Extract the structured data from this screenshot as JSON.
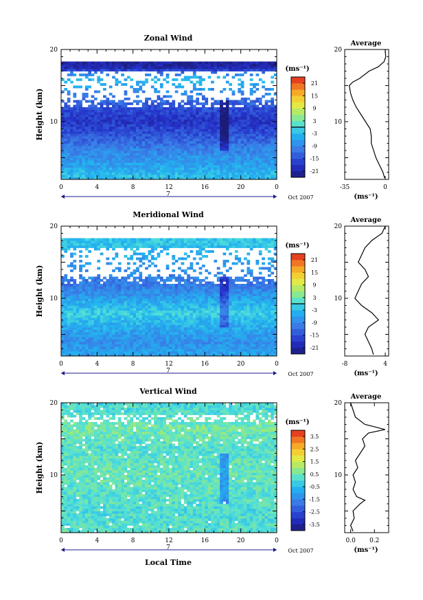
{
  "figure": {
    "xlabel_bottom": "Local Time",
    "date_label": "Oct 2007",
    "day_label": "7",
    "cbar_unit": "(ms⁻¹)",
    "avg_title": "Average",
    "avg_unit": "(ms⁻¹)",
    "height_label": "Height (km)"
  },
  "chart_data": [
    {
      "type": "heatmap",
      "title": "Zonal Wind",
      "xlabel": "Local Time",
      "ylabel": "Height (km)",
      "xlim": [
        0,
        24
      ],
      "ylim": [
        2,
        20
      ],
      "xticks": [
        "0",
        "4",
        "8",
        "12",
        "16",
        "20",
        "0"
      ],
      "yticks": [
        "20",
        "10"
      ],
      "colorbar": {
        "unit": "(ms⁻¹)",
        "ticks": [
          "21",
          "15",
          "9",
          "3",
          "-3",
          "-9",
          "-15",
          "-21"
        ],
        "range": [
          -24,
          24
        ],
        "zero_line": 0
      },
      "field_profile": [
        {
          "h": 2.5,
          "v": -3
        },
        {
          "h": 4,
          "v": -6
        },
        {
          "h": 6,
          "v": -9
        },
        {
          "h": 8,
          "v": -14
        },
        {
          "h": 10,
          "v": -18
        },
        {
          "h": 12,
          "v": -15
        },
        {
          "h": 14,
          "v": -9
        },
        {
          "h": 16,
          "v": -3
        },
        {
          "h": 17.6,
          "v": -21
        }
      ],
      "average": {
        "title": "Average",
        "xlim": [
          -35,
          3
        ],
        "xticks": [
          "-35",
          "0"
        ],
        "ylim": [
          2,
          20
        ],
        "yticks": [
          "20",
          "10"
        ],
        "xunit": "(ms⁻¹)",
        "profile": [
          {
            "h": 2.2,
            "v": -0.5
          },
          {
            "h": 3,
            "v": -2
          },
          {
            "h": 4,
            "v": -5
          },
          {
            "h": 5,
            "v": -8
          },
          {
            "h": 6,
            "v": -10
          },
          {
            "h": 7,
            "v": -12
          },
          {
            "h": 8,
            "v": -12
          },
          {
            "h": 9,
            "v": -13
          },
          {
            "h": 10,
            "v": -17
          },
          {
            "h": 11,
            "v": -21
          },
          {
            "h": 12,
            "v": -25
          },
          {
            "h": 13,
            "v": -28
          },
          {
            "h": 14,
            "v": -30
          },
          {
            "h": 15,
            "v": -31
          },
          {
            "h": 15.5,
            "v": -28
          },
          {
            "h": 16,
            "v": -22
          },
          {
            "h": 17,
            "v": -14
          },
          {
            "h": 17.6,
            "v": -6
          },
          {
            "h": 18.3,
            "v": -1
          },
          {
            "h": 19,
            "v": 0.5
          },
          {
            "h": 20,
            "v": 0
          }
        ]
      }
    },
    {
      "type": "heatmap",
      "title": "Meridional Wind",
      "xlabel": "Local Time",
      "ylabel": "Height (km)",
      "xlim": [
        0,
        24
      ],
      "ylim": [
        2,
        20
      ],
      "xticks": [
        "0",
        "4",
        "8",
        "12",
        "16",
        "20",
        "0"
      ],
      "yticks": [
        "20",
        "10"
      ],
      "colorbar": {
        "unit": "(ms⁻¹)",
        "ticks": [
          "21",
          "15",
          "9",
          "3",
          "-3",
          "-9",
          "-15",
          "-21"
        ],
        "range": [
          -24,
          24
        ],
        "zero_line": 0
      },
      "field_profile": [
        {
          "h": 2.5,
          "v": -6
        },
        {
          "h": 4,
          "v": -8
        },
        {
          "h": 6,
          "v": -5
        },
        {
          "h": 8,
          "v": -1
        },
        {
          "h": 10,
          "v": -6
        },
        {
          "h": 12,
          "v": -11
        },
        {
          "h": 14,
          "v": -8
        },
        {
          "h": 17.6,
          "v": -2
        }
      ],
      "average": {
        "title": "Average",
        "xlim": [
          -8,
          5
        ],
        "xticks": [
          "-8",
          "4"
        ],
        "ylim": [
          2,
          20
        ],
        "yticks": [
          "20",
          "10"
        ],
        "xunit": "(ms⁻¹)",
        "profile": [
          {
            "h": 2.2,
            "v": 0.5
          },
          {
            "h": 3,
            "v": 0
          },
          {
            "h": 4,
            "v": -1
          },
          {
            "h": 5,
            "v": -2
          },
          {
            "h": 6,
            "v": -1
          },
          {
            "h": 7,
            "v": 2
          },
          {
            "h": 8,
            "v": 0
          },
          {
            "h": 9,
            "v": -3
          },
          {
            "h": 10,
            "v": -5
          },
          {
            "h": 11,
            "v": -4
          },
          {
            "h": 12,
            "v": -3
          },
          {
            "h": 13,
            "v": -1
          },
          {
            "h": 14,
            "v": -2
          },
          {
            "h": 15,
            "v": -4
          },
          {
            "h": 16,
            "v": -3
          },
          {
            "h": 17,
            "v": -2
          },
          {
            "h": 18,
            "v": 0
          },
          {
            "h": 19,
            "v": 3
          },
          {
            "h": 20,
            "v": 4
          }
        ]
      }
    },
    {
      "type": "heatmap",
      "title": "Vertical Wind",
      "xlabel": "Local Time",
      "ylabel": "Height (km)",
      "xlim": [
        0,
        24
      ],
      "ylim": [
        2,
        20
      ],
      "xticks": [
        "0",
        "4",
        "8",
        "12",
        "16",
        "20",
        "0"
      ],
      "yticks": [
        "20",
        "10"
      ],
      "colorbar": {
        "unit": "(ms⁻¹)",
        "ticks": [
          "3.5",
          "2.5",
          "1.5",
          "0.5",
          "-0.5",
          "-1.5",
          "-2.5",
          "-3.5"
        ],
        "range": [
          -4,
          4
        ]
      },
      "field_profile": [
        {
          "h": 2.5,
          "v": 0.2
        },
        {
          "h": 5,
          "v": 0.1
        },
        {
          "h": 8,
          "v": 0.3
        },
        {
          "h": 11,
          "v": 0.4
        },
        {
          "h": 14,
          "v": 0.2
        },
        {
          "h": 16.5,
          "v": 0.6
        },
        {
          "h": 19,
          "v": 0.1
        }
      ],
      "average": {
        "title": "Average",
        "xlim": [
          -0.05,
          0.32
        ],
        "xticks": [
          "0.0",
          "0.2"
        ],
        "ylim": [
          2,
          20
        ],
        "yticks": [
          "20",
          "10"
        ],
        "xunit": "(ms⁻¹)",
        "profile": [
          {
            "h": 2.2,
            "v": 0.02
          },
          {
            "h": 3,
            "v": 0.0
          },
          {
            "h": 4,
            "v": 0.03
          },
          {
            "h": 5,
            "v": 0.02
          },
          {
            "h": 6,
            "v": 0.08
          },
          {
            "h": 6.5,
            "v": 0.12
          },
          {
            "h": 7,
            "v": 0.05
          },
          {
            "h": 8,
            "v": 0.02
          },
          {
            "h": 9,
            "v": 0.04
          },
          {
            "h": 10,
            "v": 0.02
          },
          {
            "h": 11,
            "v": 0.06
          },
          {
            "h": 12,
            "v": 0.04
          },
          {
            "h": 13,
            "v": 0.08
          },
          {
            "h": 14,
            "v": 0.12
          },
          {
            "h": 15,
            "v": 0.1
          },
          {
            "h": 15.8,
            "v": 0.15
          },
          {
            "h": 16.3,
            "v": 0.29
          },
          {
            "h": 17,
            "v": 0.12
          },
          {
            "h": 18,
            "v": 0.04
          },
          {
            "h": 19,
            "v": 0.02
          },
          {
            "h": 20,
            "v": 0.0
          }
        ]
      }
    }
  ]
}
